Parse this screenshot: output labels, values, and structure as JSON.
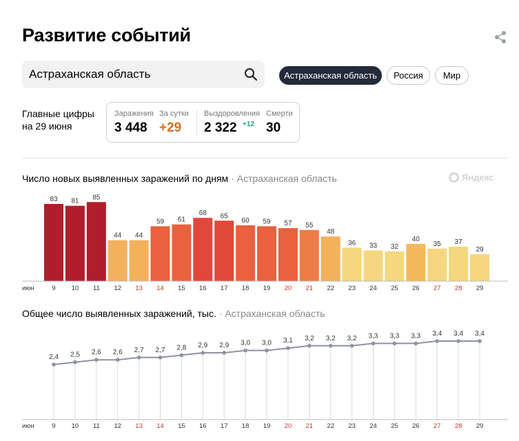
{
  "header": {
    "title": "Развитие событий"
  },
  "icons": {
    "share": "share-icon",
    "search": "search-icon",
    "yandex_logo": "yandex-logo"
  },
  "search": {
    "value": "Астраханская область",
    "placeholder": ""
  },
  "regions": [
    {
      "label": "Астраханская область",
      "active": true
    },
    {
      "label": "Россия",
      "active": false
    },
    {
      "label": "Мир",
      "active": false
    }
  ],
  "summary": {
    "label_line1": "Главные цифры",
    "label_line2": "на 29 июня",
    "infections_label": "Заражения",
    "infections_value": "3 448",
    "daily_label": "За сутки",
    "daily_value": "+29",
    "recovered_label": "Выздоровления",
    "recovered_value": "2 322",
    "recovered_delta": "+12",
    "deaths_label": "Смерти",
    "deaths_value": "30"
  },
  "chart1": {
    "title": "Число новых выявленных заражений по дням",
    "region": "Астраханская область"
  },
  "chart2": {
    "title": "Общее число выявленных заражений, тыс.",
    "region": "Астраханская область"
  },
  "watermark": "Яндекс",
  "colors": {
    "active_pill": "#232a3a",
    "daily_increase": "#d6701c",
    "recovered_delta": "#2aa36b",
    "weekend_tick": "#c0392b",
    "line": "#8e939c"
  },
  "chart_data": [
    {
      "type": "bar",
      "month_label": "июн",
      "categories": [
        "9",
        "10",
        "11",
        "12",
        "13",
        "14",
        "15",
        "16",
        "17",
        "18",
        "19",
        "20",
        "21",
        "22",
        "23",
        "24",
        "25",
        "26",
        "27",
        "28",
        "29"
      ],
      "values": [
        83,
        81,
        85,
        44,
        44,
        59,
        61,
        68,
        65,
        60,
        59,
        57,
        55,
        48,
        36,
        33,
        32,
        40,
        35,
        37,
        29
      ],
      "weekend": [
        "13",
        "14",
        "20",
        "21",
        "27",
        "28"
      ],
      "grid": false
    },
    {
      "type": "line",
      "month_label": "июн",
      "categories": [
        "9",
        "10",
        "11",
        "12",
        "13",
        "14",
        "15",
        "16",
        "17",
        "18",
        "19",
        "20",
        "21",
        "22",
        "23",
        "24",
        "25",
        "26",
        "27",
        "28",
        "29"
      ],
      "values": [
        2.4,
        2.5,
        2.6,
        2.6,
        2.7,
        2.7,
        2.8,
        2.9,
        2.9,
        3.0,
        3.0,
        3.1,
        3.2,
        3.2,
        3.2,
        3.3,
        3.3,
        3.3,
        3.4,
        3.4,
        3.4
      ],
      "value_labels": [
        "2,4",
        "2,5",
        "2,6",
        "2,6",
        "2,7",
        "2,7",
        "2,8",
        "2,9",
        "2,9",
        "3,0",
        "3,0",
        "3,1",
        "3,2",
        "3,2",
        "3,2",
        "3,3",
        "3,3",
        "3,3",
        "3,4",
        "3,4",
        "3,4"
      ],
      "weekend": [
        "13",
        "14",
        "20",
        "21",
        "27",
        "28"
      ],
      "grid": false
    }
  ]
}
